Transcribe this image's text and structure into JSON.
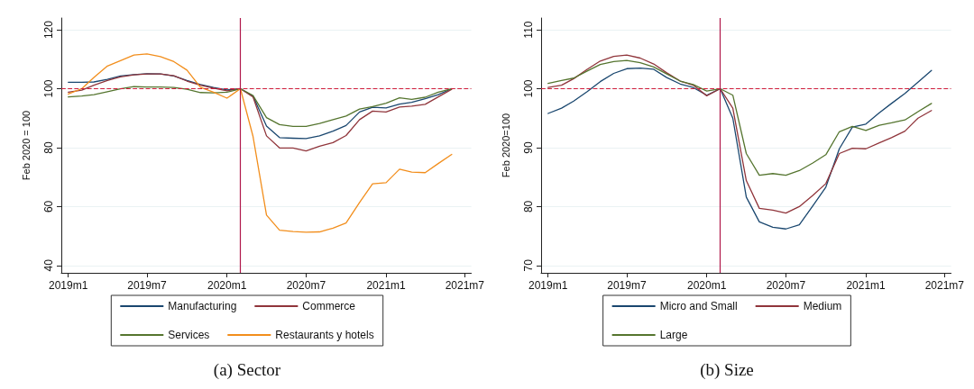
{
  "chart_data": [
    {
      "type": "line",
      "title": "(a) Sector",
      "ylabel": "Feb 2020 = 100",
      "x": [
        "2019-01",
        "2019-02",
        "2019-03",
        "2019-04",
        "2019-05",
        "2019-06",
        "2019-07",
        "2019-08",
        "2019-09",
        "2019-10",
        "2019-11",
        "2019-12",
        "2020-01",
        "2020-02",
        "2020-03",
        "2020-04",
        "2020-05",
        "2020-06",
        "2020-07",
        "2020-08",
        "2020-09",
        "2020-10",
        "2020-11",
        "2020-12",
        "2021-01",
        "2021-02",
        "2021-03",
        "2021-04",
        "2021-05",
        "2021-06"
      ],
      "series": [
        {
          "name": "Manufacturing",
          "color": "#1a476f",
          "values": [
            102.2,
            102.2,
            102.3,
            103.2,
            104.3,
            104.8,
            105.1,
            105.0,
            104.3,
            102.8,
            101.4,
            100.4,
            99.6,
            100,
            97.5,
            87.3,
            83.4,
            83.2,
            83.1,
            84.0,
            85.6,
            87.5,
            92.1,
            93.7,
            93.5,
            94.8,
            95.4,
            96.6,
            98.0,
            100
          ]
        },
        {
          "name": "Commerce",
          "color": "#90353b",
          "values": [
            98.8,
            99.5,
            101.2,
            102.8,
            104.0,
            104.7,
            105.0,
            105.0,
            104.4,
            102.6,
            101.2,
            100.2,
            99.3,
            100,
            97.2,
            84.0,
            79.9,
            79.9,
            78.9,
            80.5,
            81.7,
            84.1,
            89.5,
            92.4,
            92.1,
            93.8,
            94.1,
            94.7,
            97.2,
            99.8
          ]
        },
        {
          "name": "Services",
          "color": "#55752f",
          "values": [
            97.2,
            97.5,
            98.0,
            99.0,
            100,
            100.7,
            100.6,
            100.6,
            100.4,
            99.8,
            98.7,
            98.6,
            98.8,
            100,
            97.7,
            90.2,
            87.8,
            87.2,
            87.2,
            88.2,
            89.5,
            90.7,
            93.1,
            93.9,
            95.1,
            96.9,
            96.4,
            97.1,
            98.8,
            100
          ]
        },
        {
          "name": "Restaurants y hotels",
          "color": "#f28e1c",
          "values": [
            98.2,
            100,
            103.8,
            107.7,
            109.5,
            111.4,
            111.8,
            110.9,
            109.2,
            106.3,
            100.5,
            98.8,
            96.8,
            100,
            83.8,
            57.1,
            52.0,
            51.5,
            51.3,
            51.4,
            52.7,
            54.4,
            61.4,
            67.7,
            68.1,
            72.7,
            71.7,
            71.5,
            74.6,
            77.7
          ]
        }
      ],
      "xlim": [
        "2018-12-16",
        "2021-07-16"
      ],
      "xticks": [
        {
          "value": "2019-01",
          "label": "2019m1"
        },
        {
          "value": "2019-07",
          "label": "2019m7"
        },
        {
          "value": "2020-01",
          "label": "2020m1"
        },
        {
          "value": "2020-07",
          "label": "2020m7"
        },
        {
          "value": "2021-01",
          "label": "2021m1"
        },
        {
          "value": "2021-07",
          "label": "2021m7"
        }
      ],
      "ylim": [
        37.5,
        124
      ],
      "yticks": [
        40,
        60,
        80,
        100,
        120
      ],
      "ref_lines": [
        {
          "axis": "y",
          "value": 100,
          "color": "#d01c3a",
          "line_style": "dashed"
        },
        {
          "axis": "x",
          "value": "2020-02",
          "color": "#b0174a",
          "line_style": "solid"
        }
      ],
      "grid": "y",
      "legend": "bottom",
      "marker": "none",
      "line_style": "solid"
    },
    {
      "type": "line",
      "title": "(b) Size",
      "ylabel": "Feb 2020=100",
      "x": [
        "2019-01",
        "2019-02",
        "2019-03",
        "2019-04",
        "2019-05",
        "2019-06",
        "2019-07",
        "2019-08",
        "2019-09",
        "2019-10",
        "2019-11",
        "2019-12",
        "2020-01",
        "2020-02",
        "2020-03",
        "2020-04",
        "2020-05",
        "2020-06",
        "2020-07",
        "2020-08",
        "2020-09",
        "2020-10",
        "2020-11",
        "2020-12",
        "2021-01",
        "2021-02",
        "2021-03",
        "2021-04",
        "2021-05",
        "2021-06"
      ],
      "series": [
        {
          "name": "Micro and Small",
          "color": "#1a476f",
          "values": [
            95.8,
            96.7,
            97.9,
            99.5,
            101.2,
            102.6,
            103.4,
            103.5,
            103.3,
            101.9,
            100.8,
            100.2,
            98.9,
            100,
            95.0,
            81.6,
            77.4,
            76.5,
            76.2,
            76.9,
            80.1,
            83.3,
            89.8,
            93.5,
            94.0,
            95.9,
            97.5,
            99.2,
            101.1,
            103.1
          ]
        },
        {
          "name": "Medium",
          "color": "#90353b",
          "values": [
            100.2,
            100.6,
            101.7,
            103.3,
            104.7,
            105.5,
            105.7,
            105.2,
            104.2,
            102.7,
            101.3,
            100.6,
            98.8,
            100,
            96.7,
            84.4,
            79.7,
            79.4,
            78.9,
            80.0,
            81.9,
            83.9,
            89.0,
            89.9,
            89.8,
            90.8,
            91.7,
            92.8,
            95.0,
            96.3
          ]
        },
        {
          "name": "Large",
          "color": "#55752f",
          "values": [
            100.9,
            101.4,
            101.8,
            103.0,
            104.1,
            104.6,
            104.8,
            104.4,
            103.7,
            102.5,
            101.3,
            100.7,
            99.6,
            100,
            98.9,
            89.0,
            85.3,
            85.6,
            85.3,
            86.1,
            87.4,
            88.8,
            92.7,
            93.6,
            92.9,
            93.8,
            94.2,
            94.7,
            96.1,
            97.5
          ]
        }
      ],
      "xlim": [
        "2018-12-16",
        "2021-07-16"
      ],
      "xticks": [
        {
          "value": "2019-01",
          "label": "2019m1"
        },
        {
          "value": "2019-07",
          "label": "2019m7"
        },
        {
          "value": "2020-01",
          "label": "2020m1"
        },
        {
          "value": "2020-07",
          "label": "2020m7"
        },
        {
          "value": "2021-01",
          "label": "2021m1"
        },
        {
          "value": "2021-07",
          "label": "2021m7"
        }
      ],
      "ylim": [
        68.75,
        112
      ],
      "yticks": [
        70,
        80,
        90,
        100,
        110
      ],
      "ref_lines": [
        {
          "axis": "y",
          "value": 100,
          "color": "#d01c3a",
          "line_style": "dashed"
        },
        {
          "axis": "x",
          "value": "2020-02",
          "color": "#b0174a",
          "line_style": "solid"
        }
      ],
      "grid": "y",
      "legend": "bottom",
      "marker": "none",
      "line_style": "solid"
    }
  ]
}
